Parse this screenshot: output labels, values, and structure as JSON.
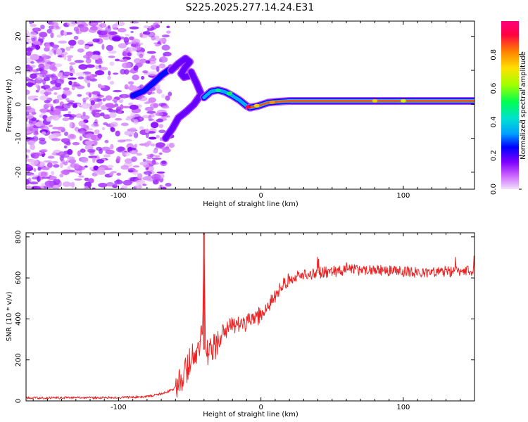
{
  "figure_title": "S225.2025.277.14.24.E31",
  "chart_data": [
    {
      "id": "spectrogram",
      "type": "heatmap",
      "title": "S225.2025.277.14.24.E31",
      "xlabel": "Height of straight line (km)",
      "ylabel": "Frequency (Hz)",
      "xlim": [
        -165,
        150
      ],
      "ylim": [
        -25,
        24.5
      ],
      "xticks": [
        -100,
        0,
        100
      ],
      "xtick_labels": [
        "-100",
        "0",
        "100"
      ],
      "yticks": [
        -20,
        -10,
        0,
        10,
        20
      ],
      "ytick_labels": [
        "-20",
        "-10",
        "0",
        "10",
        "20"
      ],
      "colorbar": {
        "label": "Normalized spectral amplitude",
        "range": [
          0,
          1
        ],
        "ticks": [
          0.0,
          0.2,
          0.4,
          0.6,
          0.8
        ],
        "tick_labels": [
          "0.0",
          "0.2",
          "0.4",
          "0.6",
          "0.8"
        ],
        "colors": [
          "#f2e2fb",
          "#cc66ff",
          "#8000ff",
          "#0000ff",
          "#00a0ff",
          "#00e0d0",
          "#00ff50",
          "#a0ff00",
          "#ffe000",
          "#ff8000",
          "#ff0040",
          "#ff0080"
        ]
      },
      "noise_region": {
        "x_range": [
          -165,
          -65
        ],
        "freq_range": [
          -25,
          24.5
        ],
        "amplitude_range": [
          0.02,
          0.18
        ]
      },
      "trace_segments": [
        {
          "name": "left-rising-branch",
          "points": [
            [
              -90,
              2.5
            ],
            [
              -82,
              4
            ],
            [
              -75,
              6.5
            ],
            [
              -70,
              8.5
            ],
            [
              -65,
              10
            ],
            [
              -60,
              11
            ]
          ],
          "amplitude": 0.28
        },
        {
          "name": "upper-arc",
          "points": [
            [
              -63,
              10
            ],
            [
              -58,
              12
            ],
            [
              -53,
              13.5
            ],
            [
              -50,
              12.5
            ],
            [
              -53,
              11
            ],
            [
              -56,
              9
            ],
            [
              -54,
              8
            ],
            [
              -49,
              8.5
            ]
          ],
          "amplitude": 0.2
        },
        {
          "name": "descending-branch",
          "points": [
            [
              -49,
              9.5
            ],
            [
              -45,
              6
            ],
            [
              -42,
              3
            ],
            [
              -47,
              0
            ],
            [
              -52,
              -2
            ],
            [
              -58,
              -4
            ],
            [
              -62,
              -7
            ],
            [
              -67,
              -10
            ]
          ],
          "amplitude": 0.2
        },
        {
          "name": "hump",
          "points": [
            [
              -40,
              2
            ],
            [
              -35,
              3.8
            ],
            [
              -30,
              4.2
            ],
            [
              -25,
              3.6
            ],
            [
              -20,
              2.5
            ],
            [
              -15,
              1.2
            ],
            [
              -10,
              -0.5
            ],
            [
              -7,
              -1
            ]
          ],
          "amplitude": 0.38
        },
        {
          "name": "flat-trace",
          "points": [
            [
              -8,
              -1
            ],
            [
              -2,
              -0.5
            ],
            [
              5,
              0.5
            ],
            [
              10,
              0.7
            ],
            [
              20,
              1
            ],
            [
              60,
              1
            ],
            [
              100,
              1
            ],
            [
              150,
              1
            ]
          ],
          "amplitude": 0.85
        }
      ]
    },
    {
      "id": "snr",
      "type": "line",
      "xlabel": "Height of straight line (km)",
      "ylabel": "SNR (10 * v/v)",
      "xlim": [
        -165,
        150
      ],
      "ylim": [
        0,
        820
      ],
      "xticks": [
        -100,
        0,
        100
      ],
      "xtick_labels": [
        "-100",
        "0",
        "100"
      ],
      "yticks": [
        0,
        200,
        400,
        600,
        800
      ],
      "ytick_labels": [
        "0",
        "200",
        "400",
        "600",
        "800"
      ],
      "color": "#ee2222",
      "series": [
        {
          "name": "SNR",
          "x": [
            -165,
            -150,
            -130,
            -110,
            -90,
            -80,
            -70,
            -62,
            -55,
            -50,
            -46,
            -43,
            -41,
            -40,
            -39,
            -37,
            -35,
            -32,
            -28,
            -24,
            -20,
            -15,
            -10,
            -5,
            0,
            5,
            10,
            15,
            20,
            30,
            40,
            50,
            60,
            70,
            80,
            90,
            100,
            110,
            120,
            130,
            140,
            150
          ],
          "y": [
            15,
            15,
            15,
            15,
            18,
            22,
            35,
            55,
            110,
            190,
            240,
            290,
            330,
            800,
            260,
            230,
            240,
            270,
            320,
            350,
            370,
            375,
            385,
            400,
            420,
            465,
            510,
            560,
            595,
            615,
            625,
            630,
            640,
            640,
            640,
            635,
            630,
            630,
            630,
            632,
            632,
            632
          ]
        }
      ]
    }
  ]
}
